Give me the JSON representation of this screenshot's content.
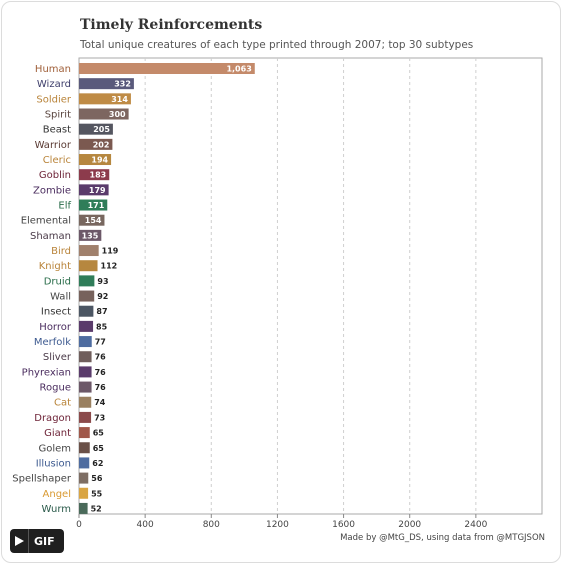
{
  "header": {
    "title": "Timely Reinforcements",
    "subtitle": "Total unique creatures of each type printed through 2007; top 30 subtypes"
  },
  "credit": "Made by @MtG_DS, using data from @MTGJSON",
  "gif_button": {
    "label": "GIF",
    "icon": "play-icon"
  },
  "chart_data": {
    "type": "bar",
    "orientation": "horizontal",
    "categories": [
      "Human",
      "Wizard",
      "Soldier",
      "Spirit",
      "Beast",
      "Warrior",
      "Cleric",
      "Goblin",
      "Zombie",
      "Elf",
      "Elemental",
      "Shaman",
      "Bird",
      "Knight",
      "Druid",
      "Wall",
      "Insect",
      "Horror",
      "Merfolk",
      "Sliver",
      "Phyrexian",
      "Rogue",
      "Cat",
      "Dragon",
      "Giant",
      "Golem",
      "Illusion",
      "Spellshaper",
      "Angel",
      "Wurm"
    ],
    "values": [
      1063,
      332,
      314,
      300,
      205,
      202,
      194,
      183,
      179,
      171,
      154,
      135,
      119,
      112,
      93,
      92,
      87,
      85,
      77,
      76,
      76,
      76,
      74,
      73,
      65,
      65,
      62,
      56,
      55,
      52
    ],
    "value_labels": [
      "1,063",
      "332",
      "314",
      "300",
      "205",
      "202",
      "194",
      "183",
      "179",
      "171",
      "154",
      "135",
      "119",
      "112",
      "93",
      "92",
      "87",
      "85",
      "77",
      "76",
      "76",
      "76",
      "74",
      "73",
      "65",
      "65",
      "62",
      "56",
      "55",
      "52"
    ],
    "colors": [
      "#c48a6a",
      "#5a5a7c",
      "#bf8b45",
      "#7d6660",
      "#545660",
      "#7b5950",
      "#b6873f",
      "#8c3b4c",
      "#5a3b6b",
      "#2f7d59",
      "#78675f",
      "#6c5868",
      "#a0806c",
      "#b6873f",
      "#2f7d59",
      "#77625c",
      "#4c5663",
      "#5a3b6b",
      "#4e6ca0",
      "#6f5e5c",
      "#5a3b6b",
      "#6c5868",
      "#9a8060",
      "#8b4a4b",
      "#a0584a",
      "#6a5048",
      "#4e6ca0",
      "#7e6e64",
      "#d9a543",
      "#4a6a5a"
    ],
    "label_colors": [
      "#a0603a",
      "#3e3e6b",
      "#b9843a",
      "#5a4640",
      "#333333",
      "#5a3a33",
      "#b9843a",
      "#6e2438",
      "#4a2c5e",
      "#2a6d4a",
      "#444444",
      "#4a3a48",
      "#b9843a",
      "#b9843a",
      "#2a6d4a",
      "#444444",
      "#333333",
      "#4a2c5e",
      "#3d5a90",
      "#4a3a48",
      "#4a2c5e",
      "#4a2c5e",
      "#b9843a",
      "#6e2438",
      "#6e2438",
      "#444444",
      "#3d5a90",
      "#444444",
      "#d99a32",
      "#2a5a4a"
    ],
    "x_ticks": [
      0,
      400,
      800,
      1200,
      1600,
      2000,
      2400
    ],
    "x_tick_labels": [
      "0",
      "400",
      "800",
      "1200",
      "1600",
      "2000",
      "2400"
    ],
    "xlim": [
      0,
      2800
    ],
    "grid": true,
    "grid_style": "dashed-vertical",
    "legend": "none"
  }
}
